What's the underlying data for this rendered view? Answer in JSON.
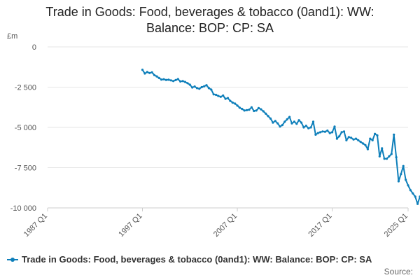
{
  "title_line1": "Trade in Goods: Food, beverages & tobacco (0and1): WW:",
  "title_line2": "Balance: BOP: CP: SA",
  "source_label": "Source:",
  "chart_data": {
    "type": "line",
    "title": "Trade in Goods: Food, beverages & tobacco (0and1): WW: Balance: BOP: CP: SA",
    "ylabel": "£m",
    "xlabel": "",
    "ylim": [
      -10000,
      0
    ],
    "yticks": [
      0,
      -2500,
      -5000,
      -7500,
      -10000
    ],
    "ytick_labels": [
      "0",
      "-2 500",
      "-5 000",
      "-7 500",
      "-10 000"
    ],
    "xlim": [
      1987.0,
      2025.0
    ],
    "xticks": [
      1987.0,
      1997.0,
      2007.0,
      2017.0,
      2025.0
    ],
    "xtick_labels": [
      "1987 Q1",
      "1997 Q1",
      "2007 Q1",
      "2017 Q1",
      "2025 Q1"
    ],
    "grid": true,
    "legend_position": "bottom-left",
    "color": "#0e7fba",
    "series": [
      {
        "name": "Trade in Goods: Food, beverages & tobacco (0and1): WW: Balance: BOP: CP: SA",
        "points": [
          [
            1997.0,
            -1420
          ],
          [
            1997.25,
            -1650
          ],
          [
            1997.5,
            -1560
          ],
          [
            1997.75,
            -1620
          ],
          [
            1998.0,
            -1580
          ],
          [
            1998.25,
            -1750
          ],
          [
            1998.5,
            -1830
          ],
          [
            1998.75,
            -1930
          ],
          [
            1999.0,
            -2030
          ],
          [
            1999.25,
            -2010
          ],
          [
            1999.5,
            -2050
          ],
          [
            1999.75,
            -2040
          ],
          [
            2000.0,
            -2080
          ],
          [
            2000.25,
            -2120
          ],
          [
            2000.5,
            -2060
          ],
          [
            2000.75,
            -2000
          ],
          [
            2001.0,
            -2150
          ],
          [
            2001.25,
            -2120
          ],
          [
            2001.5,
            -2180
          ],
          [
            2001.75,
            -2250
          ],
          [
            2002.0,
            -2350
          ],
          [
            2002.25,
            -2520
          ],
          [
            2002.5,
            -2460
          ],
          [
            2002.75,
            -2560
          ],
          [
            2003.0,
            -2600
          ],
          [
            2003.25,
            -2500
          ],
          [
            2003.5,
            -2450
          ],
          [
            2003.75,
            -2380
          ],
          [
            2004.0,
            -2560
          ],
          [
            2004.25,
            -2650
          ],
          [
            2004.5,
            -2950
          ],
          [
            2004.75,
            -2980
          ],
          [
            2005.0,
            -3050
          ],
          [
            2005.25,
            -3100
          ],
          [
            2005.5,
            -3020
          ],
          [
            2005.75,
            -3220
          ],
          [
            2006.0,
            -3180
          ],
          [
            2006.25,
            -3350
          ],
          [
            2006.5,
            -3460
          ],
          [
            2006.75,
            -3520
          ],
          [
            2007.0,
            -3650
          ],
          [
            2007.25,
            -3780
          ],
          [
            2007.5,
            -3850
          ],
          [
            2007.75,
            -3950
          ],
          [
            2008.0,
            -3930
          ],
          [
            2008.25,
            -3900
          ],
          [
            2008.5,
            -3750
          ],
          [
            2008.75,
            -3980
          ],
          [
            2009.0,
            -3950
          ],
          [
            2009.25,
            -3800
          ],
          [
            2009.5,
            -3880
          ],
          [
            2009.75,
            -4000
          ],
          [
            2010.0,
            -4150
          ],
          [
            2010.25,
            -4300
          ],
          [
            2010.5,
            -4450
          ],
          [
            2010.75,
            -4700
          ],
          [
            2011.0,
            -4600
          ],
          [
            2011.25,
            -4750
          ],
          [
            2011.5,
            -4950
          ],
          [
            2011.75,
            -4850
          ],
          [
            2012.0,
            -4650
          ],
          [
            2012.25,
            -4500
          ],
          [
            2012.5,
            -4350
          ],
          [
            2012.75,
            -4750
          ],
          [
            2013.0,
            -4650
          ],
          [
            2013.25,
            -4780
          ],
          [
            2013.5,
            -4550
          ],
          [
            2013.75,
            -4700
          ],
          [
            2014.0,
            -5000
          ],
          [
            2014.25,
            -4900
          ],
          [
            2014.5,
            -5050
          ],
          [
            2014.75,
            -5000
          ],
          [
            2015.0,
            -4650
          ],
          [
            2015.25,
            -5450
          ],
          [
            2015.5,
            -5350
          ],
          [
            2015.75,
            -5300
          ],
          [
            2016.0,
            -5250
          ],
          [
            2016.25,
            -5270
          ],
          [
            2016.5,
            -5200
          ],
          [
            2016.75,
            -5350
          ],
          [
            2017.0,
            -5300
          ],
          [
            2017.25,
            -4950
          ],
          [
            2017.5,
            -5700
          ],
          [
            2017.75,
            -5550
          ],
          [
            2018.0,
            -5300
          ],
          [
            2018.25,
            -5250
          ],
          [
            2018.5,
            -5800
          ],
          [
            2018.75,
            -5600
          ],
          [
            2019.0,
            -5650
          ],
          [
            2019.25,
            -5750
          ],
          [
            2019.5,
            -5700
          ],
          [
            2019.75,
            -5800
          ],
          [
            2020.0,
            -5900
          ],
          [
            2020.25,
            -6000
          ],
          [
            2020.5,
            -6100
          ],
          [
            2020.75,
            -6350
          ],
          [
            2021.0,
            -5700
          ],
          [
            2021.25,
            -5800
          ],
          [
            2021.5,
            -5400
          ],
          [
            2021.75,
            -5500
          ],
          [
            2022.0,
            -6800
          ],
          [
            2022.25,
            -6300
          ],
          [
            2022.5,
            -6950
          ],
          [
            2022.75,
            -6950
          ],
          [
            2023.0,
            -6800
          ],
          [
            2023.25,
            -6650
          ],
          [
            2023.5,
            -5450
          ],
          [
            2023.75,
            -6850
          ],
          [
            2024.0,
            -8350
          ],
          [
            2024.25,
            -7900
          ],
          [
            2024.5,
            -7400
          ],
          [
            2024.75,
            -8250
          ],
          [
            2025.0,
            -8600
          ],
          [
            2025.25,
            -8900
          ],
          [
            2025.5,
            -9100
          ],
          [
            2025.75,
            -9300
          ],
          [
            2026.0,
            -9750
          ],
          [
            2026.25,
            -9300
          ],
          [
            2026.5,
            -9550
          ],
          [
            2026.75,
            -9350
          ]
        ]
      }
    ]
  }
}
